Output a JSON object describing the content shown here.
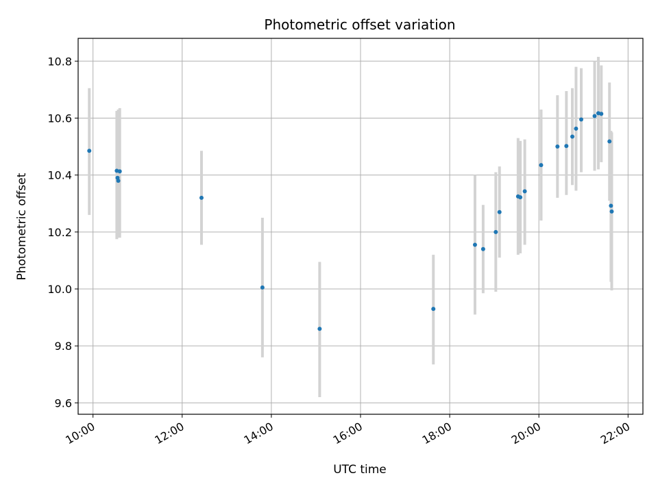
{
  "chart_data": {
    "type": "scatter",
    "title": "Photometric offset variation",
    "xlabel": "UTC time",
    "ylabel": "Photometric offset",
    "x_unit": "hours UTC",
    "xlim": [
      "09:40",
      "22:20"
    ],
    "ylim": [
      9.56,
      10.88
    ],
    "x_ticks": [
      "10:00",
      "12:00",
      "14:00",
      "16:00",
      "18:00",
      "20:00",
      "22:00"
    ],
    "y_ticks": [
      "9.6",
      "9.8",
      "10.0",
      "10.2",
      "10.4",
      "10.6",
      "10.8"
    ],
    "grid": true,
    "marker_color": "#1f77b4",
    "errorbar_color": "#d3d3d3",
    "points": [
      {
        "t": "09:55",
        "y": 10.485,
        "lo": 10.26,
        "hi": 10.705
      },
      {
        "t": "10:32",
        "y": 10.415,
        "lo": 10.175,
        "hi": 10.625
      },
      {
        "t": "10:33",
        "y": 10.39,
        "lo": 10.18,
        "hi": 10.615
      },
      {
        "t": "10:34",
        "y": 10.38,
        "lo": 10.18,
        "hi": 10.63
      },
      {
        "t": "10:36",
        "y": 10.413,
        "lo": 10.18,
        "hi": 10.635
      },
      {
        "t": "12:26",
        "y": 10.32,
        "lo": 10.155,
        "hi": 10.485
      },
      {
        "t": "13:48",
        "y": 10.005,
        "lo": 9.76,
        "hi": 10.25
      },
      {
        "t": "15:05",
        "y": 9.86,
        "lo": 9.62,
        "hi": 10.095
      },
      {
        "t": "17:38",
        "y": 9.93,
        "lo": 9.735,
        "hi": 10.12
      },
      {
        "t": "18:34",
        "y": 10.155,
        "lo": 9.91,
        "hi": 10.4
      },
      {
        "t": "18:45",
        "y": 10.14,
        "lo": 9.985,
        "hi": 10.295
      },
      {
        "t": "19:02",
        "y": 10.2,
        "lo": 9.99,
        "hi": 10.41
      },
      {
        "t": "19:07",
        "y": 10.27,
        "lo": 10.11,
        "hi": 10.43
      },
      {
        "t": "19:32",
        "y": 10.325,
        "lo": 10.12,
        "hi": 10.53
      },
      {
        "t": "19:35",
        "y": 10.322,
        "lo": 10.125,
        "hi": 10.52
      },
      {
        "t": "19:41",
        "y": 10.343,
        "lo": 10.155,
        "hi": 10.525
      },
      {
        "t": "20:03",
        "y": 10.435,
        "lo": 10.24,
        "hi": 10.63
      },
      {
        "t": "20:25",
        "y": 10.5,
        "lo": 10.32,
        "hi": 10.68
      },
      {
        "t": "20:37",
        "y": 10.502,
        "lo": 10.33,
        "hi": 10.695
      },
      {
        "t": "20:45",
        "y": 10.535,
        "lo": 10.365,
        "hi": 10.705
      },
      {
        "t": "20:50",
        "y": 10.563,
        "lo": 10.345,
        "hi": 10.78
      },
      {
        "t": "20:57",
        "y": 10.595,
        "lo": 10.41,
        "hi": 10.775
      },
      {
        "t": "21:15",
        "y": 10.607,
        "lo": 10.415,
        "hi": 10.8
      },
      {
        "t": "21:20",
        "y": 10.617,
        "lo": 10.42,
        "hi": 10.815
      },
      {
        "t": "21:24",
        "y": 10.615,
        "lo": 10.445,
        "hi": 10.785
      },
      {
        "t": "21:35",
        "y": 10.518,
        "lo": 10.31,
        "hi": 10.725
      },
      {
        "t": "21:37",
        "y": 10.292,
        "lo": 10.025,
        "hi": 10.555
      },
      {
        "t": "21:38",
        "y": 10.272,
        "lo": 9.995,
        "hi": 10.55
      }
    ]
  }
}
